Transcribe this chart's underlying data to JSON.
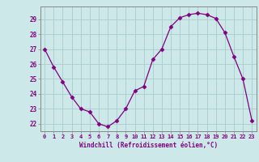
{
  "x": [
    0,
    1,
    2,
    3,
    4,
    5,
    6,
    7,
    8,
    9,
    10,
    11,
    12,
    13,
    14,
    15,
    16,
    17,
    18,
    19,
    20,
    21,
    22,
    23
  ],
  "y": [
    27.0,
    25.8,
    24.8,
    23.8,
    23.0,
    22.8,
    22.0,
    21.8,
    22.2,
    23.0,
    24.2,
    24.5,
    26.3,
    27.0,
    28.5,
    29.1,
    29.3,
    29.4,
    29.3,
    29.05,
    28.1,
    26.5,
    25.0,
    22.2
  ],
  "line_color": "#800080",
  "marker": "D",
  "marker_size": 2.5,
  "bg_color": "#cce8e8",
  "grid_color": "#aacccc",
  "xlabel": "Windchill (Refroidissement éolien,°C)",
  "xlabel_color": "#800080",
  "tick_color": "#800080",
  "ylabel_ticks": [
    22,
    23,
    24,
    25,
    26,
    27,
    28,
    29
  ],
  "xlim": [
    -0.5,
    23.5
  ],
  "ylim": [
    21.5,
    29.85
  ],
  "spine_color": "#888888",
  "tick_label_fontsize": 5.0,
  "xlabel_fontsize": 5.5
}
